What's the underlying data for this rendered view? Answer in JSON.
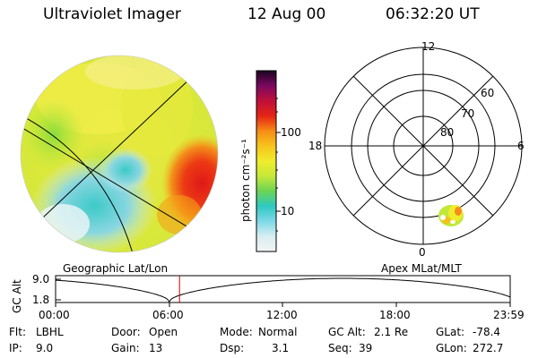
{
  "header": {
    "instrument": "Ultraviolet Imager",
    "date": "12 Aug 00",
    "time": "06:32:20 UT"
  },
  "colorbar": {
    "unit_label": "photon cm⁻²s⁻¹",
    "tick_100": "100",
    "tick_10": "10",
    "stops": [
      "#f4f4f4",
      "#d8eef2",
      "#7fd8e8",
      "#2ec9c2",
      "#6ad454",
      "#c6e83a",
      "#f0ec2c",
      "#f7c41c",
      "#f58c14",
      "#e52416",
      "#c0103a",
      "#7a0860",
      "#1a0420"
    ]
  },
  "left_panel": {
    "caption": "Geographic Lat/Lon"
  },
  "right_panel": {
    "caption": "Apex  MLat/MLT",
    "mlt_labels": {
      "top": "12",
      "left": "18",
      "right": "6",
      "bottom": "0"
    },
    "mlat_labels": {
      "r60": "60",
      "r70": "70",
      "r80": "80"
    }
  },
  "orbit_plot": {
    "ylabel": "GC Alt",
    "ymax": "9.0",
    "ymin": "1.8",
    "xticks": [
      "00:00",
      "06:00",
      "12:00",
      "18:00",
      "23:59"
    ],
    "current_time_hours": 6.54
  },
  "info": {
    "flt_label": "Flt:",
    "flt_value": "LBHL",
    "door_label": "Door:",
    "door_value": "Open",
    "mode_label": "Mode:",
    "mode_value": "Normal",
    "gcalt_label": "GC Alt:",
    "gcalt_value": "2.1 Re",
    "glat_label": "GLat:",
    "glat_value": "-78.4",
    "ip_label": "IP:",
    "ip_value": "9.0",
    "gain_label": "Gain:",
    "gain_value": "13",
    "dsp_label": "Dsp:",
    "dsp_value": "3.1",
    "seq_label": "Seq:",
    "seq_value": "39",
    "glon_label": "GLon:",
    "glon_value": "272.7"
  }
}
